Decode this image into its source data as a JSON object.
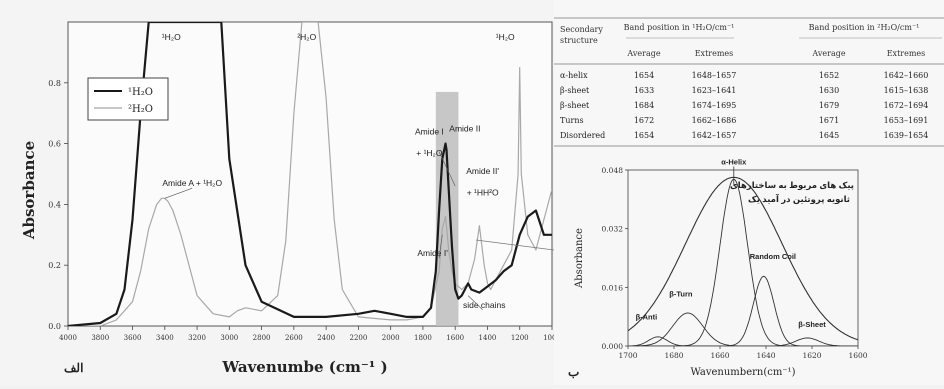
{
  "figure": {
    "panel_a_label": "الف",
    "panel_b_label": "ب"
  },
  "table": {
    "col_structure": "Secondary structure",
    "group_h2o": "Band position in ¹H₂O/cm⁻¹",
    "group_d2o": "Band position in ²H₂O/cm⁻¹",
    "sub_average": "Average",
    "sub_extremes": "Extremes",
    "rows": [
      {
        "structure": "α-helix",
        "h_avg": "1654",
        "h_ext": "1648–1657",
        "d_avg": "1652",
        "d_ext": "1642–1660"
      },
      {
        "structure": "β-sheet",
        "h_avg": "1633",
        "h_ext": "1623–1641",
        "d_avg": "1630",
        "d_ext": "1615–1638"
      },
      {
        "structure": "β-sheet",
        "h_avg": "1684",
        "h_ext": "1674–1695",
        "d_avg": "1679",
        "d_ext": "1672–1694"
      },
      {
        "structure": "Turns",
        "h_avg": "1672",
        "h_ext": "1662–1686",
        "d_avg": "1671",
        "d_ext": "1653–1691"
      },
      {
        "structure": "Disordered",
        "h_avg": "1654",
        "h_ext": "1642–1657",
        "d_avg": "1645",
        "d_ext": "1639–1654"
      }
    ]
  },
  "chart_data": [
    {
      "type": "line",
      "xlabel": "Wavenumbe (cm⁻¹ )",
      "ylabel": "Absorbance",
      "xlim": [
        4000,
        1000
      ],
      "ylim": [
        0,
        1.0
      ],
      "xticks": [
        4000,
        3800,
        3600,
        3400,
        3200,
        3000,
        2800,
        2600,
        2400,
        2200,
        2000,
        1800,
        1600,
        1400,
        1200,
        1000
      ],
      "yticks": [
        0.0,
        0.2,
        0.4,
        0.6,
        0.8
      ],
      "legend": {
        "placement": "top-left",
        "entries": [
          "¹H₂O",
          "²H₂O"
        ]
      },
      "highlight_band": [
        1720,
        1580
      ],
      "series": [
        {
          "name": "¹H₂O",
          "color": "#1a1a1a",
          "x": [
            4000,
            3800,
            3700,
            3650,
            3600,
            3550,
            3500,
            3450,
            3430,
            3400,
            3350,
            3300,
            3250,
            3200,
            3150,
            3100,
            3050,
            3000,
            2900,
            2800,
            2600,
            2400,
            2200,
            2100,
            2000,
            1900,
            1800,
            1750,
            1720,
            1700,
            1680,
            1660,
            1654,
            1640,
            1630,
            1620,
            1600,
            1580,
            1560,
            1540,
            1520,
            1500,
            1450,
            1400,
            1350,
            1300,
            1250,
            1200,
            1150,
            1100,
            1050,
            1000
          ],
          "y": [
            0.0,
            0.01,
            0.04,
            0.12,
            0.35,
            0.7,
            1.0,
            1.0,
            1.0,
            1.0,
            1.0,
            1.0,
            1.0,
            1.0,
            1.0,
            1.0,
            1.0,
            0.55,
            0.2,
            0.08,
            0.03,
            0.03,
            0.04,
            0.05,
            0.04,
            0.03,
            0.03,
            0.06,
            0.18,
            0.38,
            0.55,
            0.6,
            0.58,
            0.45,
            0.35,
            0.26,
            0.12,
            0.09,
            0.1,
            0.12,
            0.14,
            0.12,
            0.11,
            0.13,
            0.15,
            0.18,
            0.2,
            0.3,
            0.36,
            0.38,
            0.3,
            0.3
          ]
        },
        {
          "name": "²H₂O",
          "color": "#a8a8a8",
          "x": [
            4000,
            3800,
            3700,
            3600,
            3550,
            3500,
            3450,
            3420,
            3400,
            3380,
            3350,
            3300,
            3250,
            3200,
            3100,
            3000,
            2950,
            2900,
            2800,
            2700,
            2650,
            2600,
            2550,
            2500,
            2450,
            2400,
            2350,
            2300,
            2200,
            2000,
            1900,
            1800,
            1750,
            1700,
            1680,
            1660,
            1654,
            1640,
            1620,
            1600,
            1560,
            1520,
            1480,
            1450,
            1420,
            1400,
            1380,
            1350,
            1300,
            1250,
            1210,
            1200,
            1190,
            1150,
            1100,
            1050,
            1000
          ],
          "y": [
            0.0,
            0.0,
            0.02,
            0.08,
            0.18,
            0.32,
            0.4,
            0.42,
            0.42,
            0.41,
            0.38,
            0.3,
            0.2,
            0.1,
            0.04,
            0.03,
            0.05,
            0.06,
            0.05,
            0.1,
            0.28,
            0.7,
            1.0,
            1.0,
            1.0,
            0.75,
            0.35,
            0.12,
            0.03,
            0.02,
            0.02,
            0.03,
            0.06,
            0.18,
            0.32,
            0.36,
            0.33,
            0.25,
            0.18,
            0.14,
            0.12,
            0.14,
            0.22,
            0.33,
            0.2,
            0.14,
            0.12,
            0.15,
            0.2,
            0.25,
            0.5,
            0.85,
            0.5,
            0.3,
            0.25,
            0.35,
            0.45
          ]
        }
      ],
      "annotations": [
        {
          "text": "¹H₂O",
          "x": 3360,
          "y": 0.94
        },
        {
          "text": "²H₂O",
          "x": 2520,
          "y": 0.94
        },
        {
          "text": "¹H₂O",
          "x": 1290,
          "y": 0.94
        },
        {
          "text": "Amide A + ¹H₂O",
          "x": 3230,
          "y": 0.46
        },
        {
          "text": "Amide I",
          "x": 1760,
          "y": 0.63
        },
        {
          "text": "+ ¹H₂O",
          "x": 1760,
          "y": 0.56
        },
        {
          "text": "Amide II",
          "x": 1540,
          "y": 0.64
        },
        {
          "text": "Amide II'",
          "x": 1430,
          "y": 0.5
        },
        {
          "text": "+ ¹HH²O",
          "x": 1430,
          "y": 0.43
        },
        {
          "text": "Amide I'",
          "x": 1740,
          "y": 0.23
        },
        {
          "text": "side chains",
          "x": 1420,
          "y": 0.06
        }
      ]
    },
    {
      "type": "line",
      "xlabel": "Wavenumbern(cm⁻¹)",
      "ylabel": "Absorbance",
      "xlim": [
        1700,
        1600
      ],
      "ylim": [
        0,
        0.048
      ],
      "xticks": [
        1700,
        1680,
        1660,
        1640,
        1620,
        1600
      ],
      "yticks": [
        0.0,
        0.016,
        0.032,
        0.048
      ],
      "ytick_labels": [
        "0.000",
        "0.016",
        "0.032",
        "0.048"
      ],
      "series": [
        {
          "name": "Envelope",
          "type": "gaussian",
          "center": 1654,
          "amplitude": 0.046,
          "sigma": 21
        },
        {
          "name": "β-Anti",
          "type": "gaussian",
          "center": 1687,
          "amplitude": 0.0025,
          "sigma": 4
        },
        {
          "name": "β-Turn",
          "type": "gaussian",
          "center": 1674,
          "amplitude": 0.009,
          "sigma": 6.5
        },
        {
          "name": "α-Helix",
          "type": "gaussian",
          "center": 1654,
          "amplitude": 0.0455,
          "sigma": 6
        },
        {
          "name": "Random Coil",
          "type": "gaussian",
          "center": 1641,
          "amplitude": 0.019,
          "sigma": 4.5
        },
        {
          "name": "β-Sheet",
          "type": "gaussian",
          "center": 1622,
          "amplitude": 0.0022,
          "sigma": 5
        }
      ],
      "annotations": [
        {
          "text": "α-Helix",
          "x": 1654,
          "y": 0.0495
        },
        {
          "text": "β-Turn",
          "x": 1677,
          "y": 0.0135
        },
        {
          "text": "β-Anti",
          "x": 1692,
          "y": 0.0072
        },
        {
          "text": "Random Coil",
          "x": 1637,
          "y": 0.0237
        },
        {
          "text": "β-Sheet",
          "x": 1620,
          "y": 0.0052
        }
      ],
      "note_lines": [
        "پیک های مربوط به ساختارهای",
        "ثانویه پروتئین در آمید یک"
      ]
    }
  ]
}
